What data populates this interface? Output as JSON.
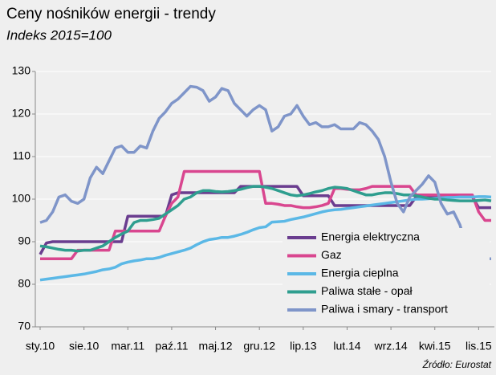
{
  "chart_data": {
    "type": "line",
    "title": "Ceny nośników energii - trendy",
    "subtitle": "Indeks 2015=100",
    "source": "Źródło: Eurostat",
    "categories": [
      "sty.10",
      null,
      null,
      null,
      null,
      null,
      null,
      "sie.10",
      null,
      null,
      null,
      null,
      null,
      null,
      "mar.11",
      null,
      null,
      null,
      null,
      null,
      null,
      "paź.11",
      null,
      null,
      null,
      null,
      null,
      null,
      "maj.12",
      null,
      null,
      null,
      null,
      null,
      null,
      "gru.12",
      null,
      null,
      null,
      null,
      null,
      null,
      "lip.13",
      null,
      null,
      null,
      null,
      null,
      null,
      "lut.14",
      null,
      null,
      null,
      null,
      null,
      null,
      "wrz.14",
      null,
      null,
      null,
      null,
      null,
      null,
      "kwi.15",
      null,
      null,
      null,
      null,
      null,
      null,
      "lis.15",
      null,
      null
    ],
    "ylim": [
      70,
      130
    ],
    "yticks": [
      70,
      80,
      90,
      100,
      110,
      120,
      130
    ],
    "grid": true,
    "legend": "lower right",
    "series": [
      {
        "name": "Energia elektryczna",
        "color": "#6a3d8f",
        "values": [
          87,
          89.7,
          90,
          90,
          90,
          90,
          90,
          90,
          90,
          90,
          90,
          90,
          90,
          90,
          96,
          96,
          96,
          96,
          96,
          96,
          96,
          101,
          101.5,
          101.5,
          101.5,
          101.5,
          101.5,
          101.5,
          101.5,
          101.5,
          101.5,
          101.5,
          103,
          103,
          103,
          103,
          103,
          103,
          103,
          103,
          103,
          103,
          100.8,
          100.8,
          100.8,
          100.8,
          100.8,
          98.5,
          98.5,
          98.5,
          98.5,
          98.5,
          98.5,
          98.5,
          98.5,
          98.5,
          98.5,
          98.5,
          98.5,
          98.5,
          100.5,
          100.5,
          100.5,
          100.5,
          100.5,
          100.5,
          100.5,
          100.5,
          100.5,
          100.5,
          98,
          98,
          98
        ]
      },
      {
        "name": "Gaz",
        "color": "#d9468f",
        "values": [
          86,
          86,
          86,
          86,
          86,
          86,
          88,
          88,
          88,
          88,
          88,
          88,
          92.5,
          92.5,
          92.5,
          92.5,
          92.5,
          92.5,
          92.5,
          92.5,
          96,
          99,
          100.5,
          106.5,
          106.5,
          106.5,
          106.5,
          106.5,
          106.5,
          106.5,
          106.5,
          106.5,
          106.5,
          106.5,
          106.5,
          106.5,
          99,
          99,
          98.8,
          98.5,
          98.5,
          98.2,
          98,
          98,
          98.2,
          98.5,
          99,
          102.5,
          102.5,
          102.3,
          102.2,
          102.2,
          102.5,
          103,
          103,
          103,
          103,
          103,
          103,
          103,
          101,
          101,
          101,
          101,
          101,
          101,
          101,
          101,
          101,
          101,
          97,
          95,
          95
        ]
      },
      {
        "name": "Energia cieplna",
        "color": "#5bb8e6",
        "values": [
          81,
          81.2,
          81.4,
          81.6,
          81.8,
          82,
          82.2,
          82.4,
          82.7,
          83,
          83.4,
          83.6,
          84,
          84.8,
          85.2,
          85.5,
          85.7,
          86,
          86,
          86.3,
          86.8,
          87.2,
          87.6,
          88,
          88.5,
          89.3,
          90,
          90.5,
          90.7,
          91,
          91,
          91.3,
          91.7,
          92.2,
          92.8,
          93.3,
          93.5,
          94.6,
          94.7,
          94.8,
          95.2,
          95.5,
          95.8,
          96.2,
          96.6,
          97,
          97.3,
          97.5,
          97.6,
          97.8,
          98,
          98.2,
          98.4,
          98.6,
          98.8,
          99,
          99.2,
          99.4,
          99.6,
          99.8,
          100,
          100,
          100.1,
          100.2,
          100.3,
          100.4,
          100.4,
          100.5,
          100.5,
          100.5,
          100.6,
          100.6,
          100.5
        ]
      },
      {
        "name": "Paliwa stałe - opał",
        "color": "#2f9e8f",
        "values": [
          89,
          88.8,
          88.5,
          88.2,
          88,
          88,
          87.8,
          88,
          88,
          88.5,
          89,
          90,
          91,
          91.8,
          92.5,
          94.5,
          95,
          95,
          95.2,
          95.5,
          96.5,
          97.5,
          98.5,
          100,
          100.5,
          101.5,
          102,
          102,
          101.8,
          101.7,
          101.8,
          102,
          102.3,
          102.7,
          103,
          103,
          102.8,
          102.5,
          102,
          101.5,
          101,
          100.8,
          101,
          101.3,
          101.7,
          102,
          102.5,
          102.8,
          102.7,
          102.5,
          102,
          101.5,
          101,
          101,
          101.3,
          101.5,
          101.5,
          101.3,
          101,
          101,
          100.8,
          100.5,
          100.2,
          100,
          100,
          99.8,
          99.7,
          99.6,
          99.6,
          99.6,
          99.7,
          99.8,
          99.6
        ]
      },
      {
        "name": "Paliwa i smary - transport",
        "color": "#7f95c9",
        "values": [
          94.5,
          95,
          97,
          100.5,
          101,
          99.5,
          99,
          100,
          105,
          107.5,
          106,
          109,
          112,
          112.5,
          111,
          111,
          112.5,
          112,
          116,
          119,
          120.5,
          122.5,
          123.5,
          125,
          126.5,
          126.3,
          125.5,
          123,
          124,
          126,
          125.5,
          122.5,
          121,
          119.5,
          121,
          122,
          121,
          116,
          117,
          119.5,
          120,
          122,
          119.5,
          117.5,
          118,
          117,
          117,
          117.5,
          116.5,
          116.5,
          116.5,
          118,
          117.5,
          116,
          114,
          110,
          104,
          99,
          97,
          100.5,
          102,
          103.5,
          105.5,
          104,
          99,
          96.5,
          97,
          94,
          89,
          86,
          86,
          86,
          86
        ]
      }
    ]
  }
}
